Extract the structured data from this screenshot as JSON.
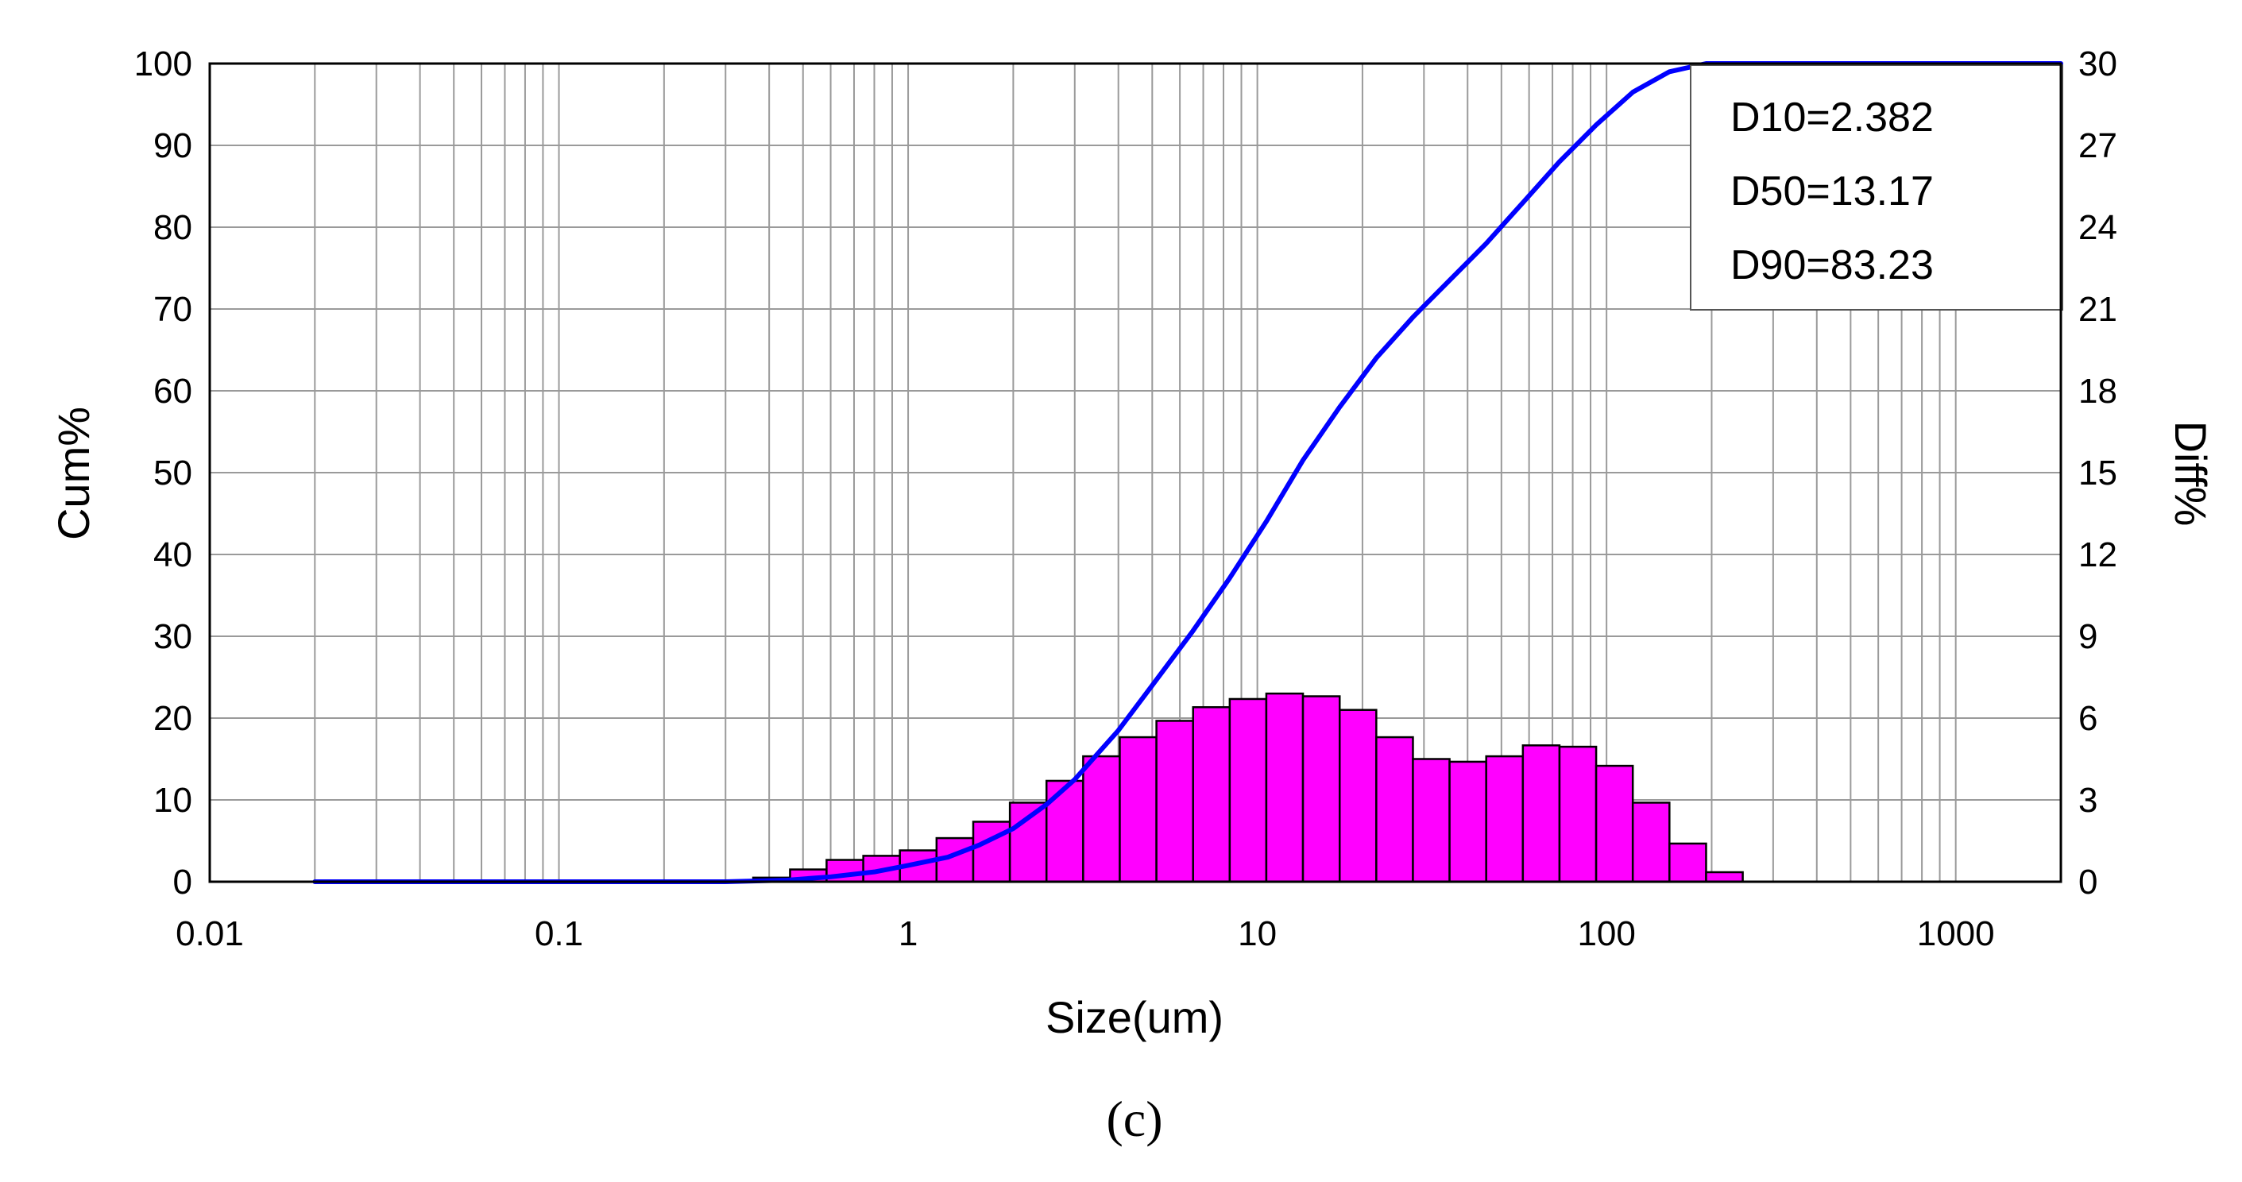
{
  "chart_data": {
    "type": "bar",
    "title": "",
    "xlabel": "Size(um)",
    "ylabel": "Cum%",
    "y2label": "Diff%",
    "x_scale": "log",
    "xlim": [
      0.01,
      2000
    ],
    "ylim": [
      0,
      100
    ],
    "y2lim": [
      0,
      30
    ],
    "x_ticks": [
      "0.01",
      "0.1",
      "1",
      "10",
      "100",
      "1000"
    ],
    "y_ticks": [
      "0",
      "10",
      "20",
      "30",
      "40",
      "50",
      "60",
      "70",
      "80",
      "90",
      "100"
    ],
    "y2_ticks": [
      "0",
      "3",
      "6",
      "9",
      "12",
      "15",
      "18",
      "21",
      "24",
      "27",
      "30"
    ],
    "grid": true,
    "panel_label": "(c)",
    "annotation_box": {
      "position": "top-right",
      "lines": [
        "D10=2.382",
        "D50=13.17",
        "D90=83.23"
      ]
    },
    "diff_bars": {
      "axis": "right",
      "color": "#ff00ff",
      "bin_edges": [
        0.36,
        0.459,
        0.584,
        0.744,
        0.947,
        1.206,
        1.536,
        1.956,
        2.49,
        3.171,
        4.037,
        5.141,
        6.546,
        8.335,
        10.61,
        13.51,
        17.21,
        21.91,
        27.9,
        35.52,
        45.23,
        57.6,
        73.34,
        93.39,
        118.9,
        151.4,
        192.8,
        245.5
      ],
      "values": [
        0.15,
        0.45,
        0.8,
        0.95,
        1.15,
        1.6,
        2.2,
        2.9,
        3.7,
        4.6,
        5.3,
        5.9,
        6.4,
        6.7,
        6.9,
        6.8,
        6.3,
        5.3,
        4.5,
        4.4,
        4.6,
        5.0,
        4.95,
        4.25,
        2.9,
        1.4,
        0.35
      ]
    },
    "cum_curve": {
      "axis": "left",
      "color": "#0000ff",
      "x": [
        0.02,
        0.1,
        0.3,
        0.45,
        0.6,
        0.8,
        1.0,
        1.3,
        1.6,
        2.0,
        2.5,
        3.0,
        4.0,
        5.0,
        6.5,
        8.3,
        10.6,
        13.5,
        17.2,
        21.9,
        27.9,
        35.5,
        45.2,
        57.6,
        73.3,
        93.4,
        118.9,
        151.4,
        192.8,
        245.5,
        2000
      ],
      "y": [
        0,
        0,
        0,
        0.2,
        0.6,
        1.2,
        2.0,
        3.0,
        4.5,
        6.5,
        9.5,
        12.5,
        18.5,
        24.0,
        30.5,
        37.0,
        44.0,
        51.5,
        58.0,
        64.0,
        69.0,
        73.5,
        78.0,
        83.0,
        88.0,
        92.5,
        96.5,
        99.0,
        100,
        100,
        100
      ]
    }
  }
}
